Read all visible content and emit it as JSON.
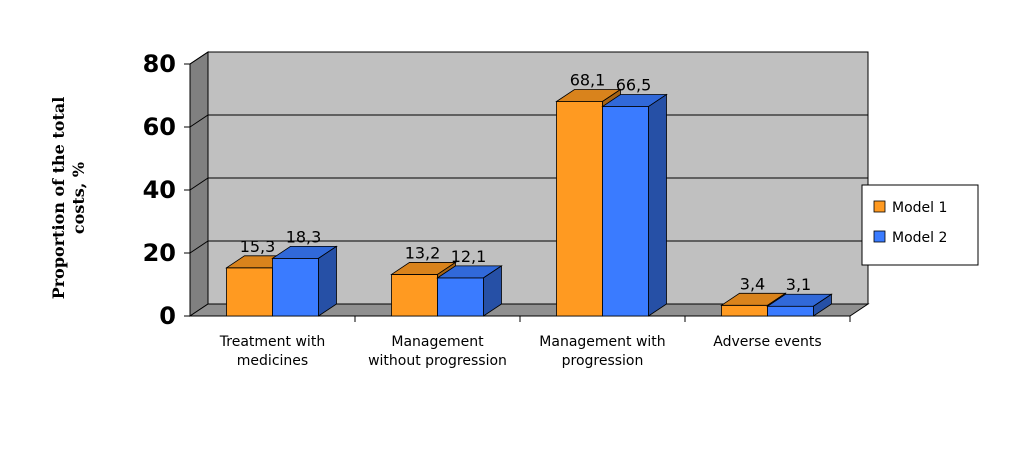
{
  "chart_data": {
    "type": "bar",
    "title": "",
    "ylabel": "Proportion of the total costs, %",
    "xlabel": "",
    "ylim": [
      0,
      80
    ],
    "yticks": [
      "0",
      "20",
      "40",
      "60",
      "80"
    ],
    "categories": [
      [
        "Treatment with",
        "medicines"
      ],
      [
        "Management",
        "without progression"
      ],
      [
        "Management with",
        "progression"
      ],
      [
        "Adverse events"
      ]
    ],
    "series": [
      {
        "name": "Model 1",
        "color": "#FF9A21",
        "values": [
          15.3,
          13.2,
          68.1,
          3.4
        ],
        "labels": [
          "15,3",
          "13,2",
          "68,1",
          "3,4"
        ]
      },
      {
        "name": "Model 2",
        "color": "#3A7BFF",
        "values": [
          18.3,
          12.1,
          66.5,
          3.1
        ],
        "labels": [
          "18,3",
          "12,1",
          "66,5",
          "3,1"
        ]
      }
    ],
    "grid": true,
    "legend_position": "right",
    "style": "3d-clustered-column",
    "wall_color": "#C0C0C0"
  }
}
